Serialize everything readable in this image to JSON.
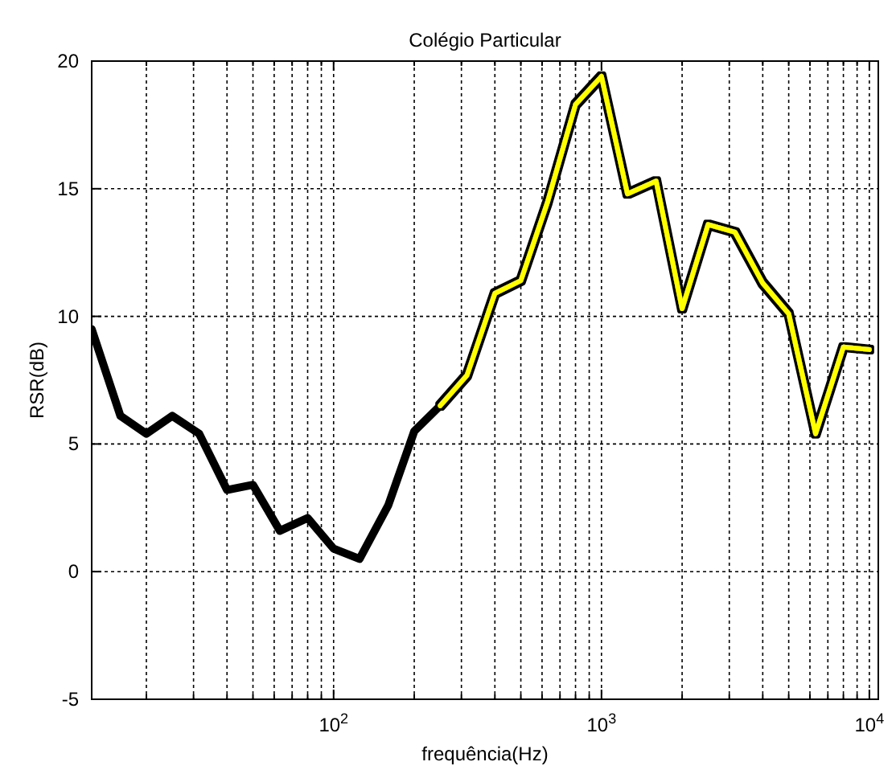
{
  "chart_data": {
    "type": "line",
    "title": "Colégio Particular",
    "xlabel": "frequência(Hz)",
    "ylabel": "RSR(dB)",
    "log": "x",
    "grid": true,
    "marker": "none",
    "line_style": "solid",
    "xlim": [
      12.5,
      10800
    ],
    "ylim": [
      -5,
      20
    ],
    "yticks": [
      -5,
      0,
      5,
      10,
      15,
      20
    ],
    "xticks": [
      {
        "value": 20,
        "label": null
      },
      {
        "value": 30,
        "label": null
      },
      {
        "value": 40,
        "label": null
      },
      {
        "value": 50,
        "label": null
      },
      {
        "value": 60,
        "label": null
      },
      {
        "value": 70,
        "label": null
      },
      {
        "value": 80,
        "label": null
      },
      {
        "value": 90,
        "label": null
      },
      {
        "value": 100,
        "label": "10$^{2}$"
      },
      {
        "value": 200,
        "label": null
      },
      {
        "value": 300,
        "label": null
      },
      {
        "value": 400,
        "label": null
      },
      {
        "value": 500,
        "label": null
      },
      {
        "value": 600,
        "label": null
      },
      {
        "value": 700,
        "label": null
      },
      {
        "value": 800,
        "label": null
      },
      {
        "value": 900,
        "label": null
      },
      {
        "value": 1000,
        "label": "10$^{3}$"
      },
      {
        "value": 2000,
        "label": null
      },
      {
        "value": 3000,
        "label": null
      },
      {
        "value": 4000,
        "label": null
      },
      {
        "value": 5000,
        "label": null
      },
      {
        "value": 6000,
        "label": null
      },
      {
        "value": 7000,
        "label": null
      },
      {
        "value": 8000,
        "label": null
      },
      {
        "value": 9000,
        "label": null
      },
      {
        "value": 10000,
        "label": "10$^{4}$"
      }
    ],
    "series": [
      {
        "color": "#000000",
        "x": [
          12.5,
          16,
          20,
          25,
          31.5,
          40,
          50,
          63,
          80,
          100,
          125,
          160,
          200,
          250
        ],
        "values": [
          9.5,
          6.1,
          5.4,
          6.1,
          5.4,
          3.2,
          3.4,
          1.6,
          2.1,
          0.9,
          0.5,
          2.6,
          5.5,
          6.5
        ]
      },
      {
        "color": "#ffff00",
        "x": [
          250,
          315,
          400,
          500,
          630,
          800,
          1000,
          1250,
          1600,
          2000,
          2500,
          3150,
          4000,
          5000,
          6300,
          8000,
          10000
        ],
        "values": [
          6.5,
          7.7,
          10.9,
          11.4,
          14.5,
          18.3,
          19.4,
          14.8,
          15.3,
          10.3,
          13.6,
          13.3,
          11.3,
          10.1,
          5.4,
          8.8,
          8.7
        ]
      }
    ]
  }
}
